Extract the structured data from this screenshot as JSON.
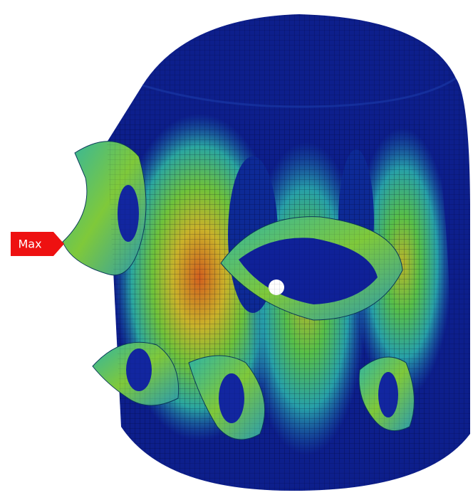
{
  "annotation": {
    "label": "Max"
  }
}
